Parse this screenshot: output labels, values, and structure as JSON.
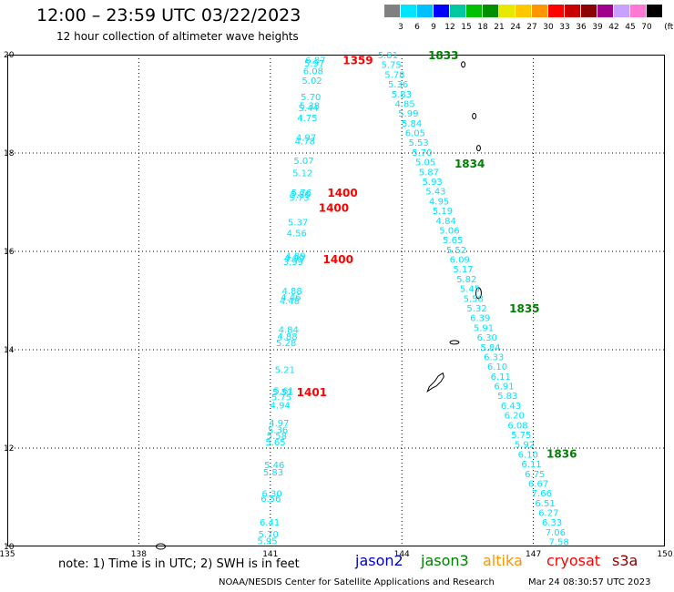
{
  "header": {
    "title": "12:00 – 23:59 UTC 03/22/2023",
    "subtitle": "12 hour collection of altimeter wave heights"
  },
  "colorbar": {
    "unit": "(ft)",
    "levels": [
      {
        "label": "3",
        "color": "#808080"
      },
      {
        "label": "6",
        "color": "#00e5ff"
      },
      {
        "label": "9",
        "color": "#00bfff"
      },
      {
        "label": "12",
        "color": "#0000ff"
      },
      {
        "label": "15",
        "color": "#00c8a0"
      },
      {
        "label": "18",
        "color": "#00c000"
      },
      {
        "label": "21",
        "color": "#009000"
      },
      {
        "label": "24",
        "color": "#e8e800"
      },
      {
        "label": "27",
        "color": "#ffc800"
      },
      {
        "label": "30",
        "color": "#ff9600"
      },
      {
        "label": "33",
        "color": "#ff0000"
      },
      {
        "label": "36",
        "color": "#c80000"
      },
      {
        "label": "39",
        "color": "#8b0000"
      },
      {
        "label": "42",
        "color": "#a0008c"
      },
      {
        "label": "45",
        "color": "#c8a0ff"
      },
      {
        "label": "70",
        "color": "#ff78d2"
      },
      {
        "label": "",
        "color": "#000000"
      }
    ]
  },
  "axes": {
    "lat_ticks": [
      "20",
      "18",
      "16",
      "14",
      "12",
      "10"
    ],
    "lon_ticks": [
      "135",
      "138",
      "141",
      "144",
      "147",
      "150"
    ]
  },
  "passes": {
    "cryosat": [
      {
        "label": "1359",
        "lat": 19.9,
        "lon": 142.65
      },
      {
        "label": "1400",
        "lat": 17.2,
        "lon": 142.3
      },
      {
        "label": "1400",
        "lat": 16.9,
        "lon": 142.1
      },
      {
        "label": "1400",
        "lat": 15.85,
        "lon": 142.2
      },
      {
        "label": "1401",
        "lat": 13.15,
        "lon": 141.6
      }
    ],
    "jason3": [
      {
        "label": "1833",
        "lat": 20.0,
        "lon": 144.6
      },
      {
        "label": "1834",
        "lat": 17.8,
        "lon": 145.2
      },
      {
        "label": "1835",
        "lat": 14.85,
        "lon": 146.45
      },
      {
        "label": "1836",
        "lat": 11.9,
        "lon": 147.3
      }
    ]
  },
  "track_west": {
    "lon_start": 141.8,
    "lon_end": 140.7,
    "values": [
      "6.87",
      "5.97",
      "6.08",
      "5.02",
      "5.70",
      "5.38",
      "5.44",
      "4.75",
      "4.97",
      "4.78",
      "5.07",
      "5.12",
      "5.76",
      "5.86",
      "5.73",
      "5.37",
      "4.56",
      "4.89",
      "4.99",
      "3.99",
      "4.88",
      "4.46",
      "4.48",
      "4.84",
      "4.88",
      "5.28",
      "5.21",
      "5.61",
      "5.51",
      "5.75",
      "4.94",
      "4.97",
      "5.36",
      "5.58",
      "5.65",
      "5.46",
      "5.83",
      "6.30",
      "6.56",
      "6.41",
      "5.70",
      "5.95"
    ],
    "lats": [
      19.9,
      19.83,
      19.68,
      19.48,
      19.15,
      18.97,
      18.93,
      18.72,
      18.32,
      18.25,
      17.85,
      17.6,
      17.2,
      17.17,
      17.1,
      16.6,
      16.38,
      15.92,
      15.87,
      15.8,
      15.2,
      15.07,
      15.0,
      14.42,
      14.28,
      14.15,
      13.6,
      13.18,
      13.15,
      13.05,
      12.88,
      12.52,
      12.38,
      12.26,
      12.13,
      11.67,
      11.52,
      11.08,
      10.98,
      10.5,
      10.26,
      10.12
    ]
  },
  "track_east": {
    "values": [
      "5.81",
      "5.75",
      "5.78",
      "5.36",
      "5.83",
      "4.85",
      "5.99",
      "5.84",
      "6.05",
      "5.53",
      "5.70",
      "5.05",
      "5.87",
      "5.93",
      "5.43",
      "4.95",
      "5.19",
      "4.84",
      "5.06",
      "5.65",
      "5.52",
      "6.09",
      "5.17",
      "5.82",
      "5.45",
      "5.58",
      "5.32",
      "6.39",
      "5.91",
      "6.30",
      "5.84",
      "6.33",
      "6.10",
      "6.11",
      "6.91",
      "5.83",
      "6.43",
      "6.20",
      "6.08",
      "5.75",
      "5.92",
      "6.10",
      "6.11",
      "6.75",
      "6.67",
      "7.66",
      "6.51",
      "6.27",
      "6.33",
      "7.06",
      "7.58"
    ],
    "lon_start": 143.45,
    "lon_end": 147.35,
    "lat_start": 20.0,
    "lat_end": 10.1
  },
  "islands": [
    {
      "name": "guam",
      "lat": 13.45,
      "lon": 144.75
    },
    {
      "name": "rota",
      "lat": 14.15,
      "lon": 145.2
    },
    {
      "name": "saipan",
      "lat": 15.15,
      "lon": 145.75
    },
    {
      "name": "pagan",
      "lat": 18.1,
      "lon": 145.75
    },
    {
      "name": "agrihan",
      "lat": 18.75,
      "lon": 145.65
    },
    {
      "name": "farallon",
      "lat": 19.8,
      "lon": 145.4
    },
    {
      "name": "yap-area",
      "lat": 10.0,
      "lon": 138.5
    }
  ],
  "legend": {
    "note": "note: 1) Time is in UTC; 2) SWH is in feet",
    "jason2": {
      "label": "jason2",
      "color": "#0000cc"
    },
    "jason3": {
      "label": "jason3",
      "color": "#008000"
    },
    "altika": {
      "label": "altika",
      "color": "#ff9600"
    },
    "cryosat": {
      "label": "cryosat",
      "color": "#ff0000"
    },
    "s3a": {
      "label": "s3a",
      "color": "#8b0000"
    }
  },
  "footer": {
    "credit": "NOAA/NESDIS Center for Satellite Applications and Research",
    "stamp": "Mar 24 08:30:57 UTC 2023"
  },
  "colors": {
    "swh_text": "#00e5ff",
    "cryosat_time": "#ff0000",
    "jason3_time": "#008000"
  }
}
